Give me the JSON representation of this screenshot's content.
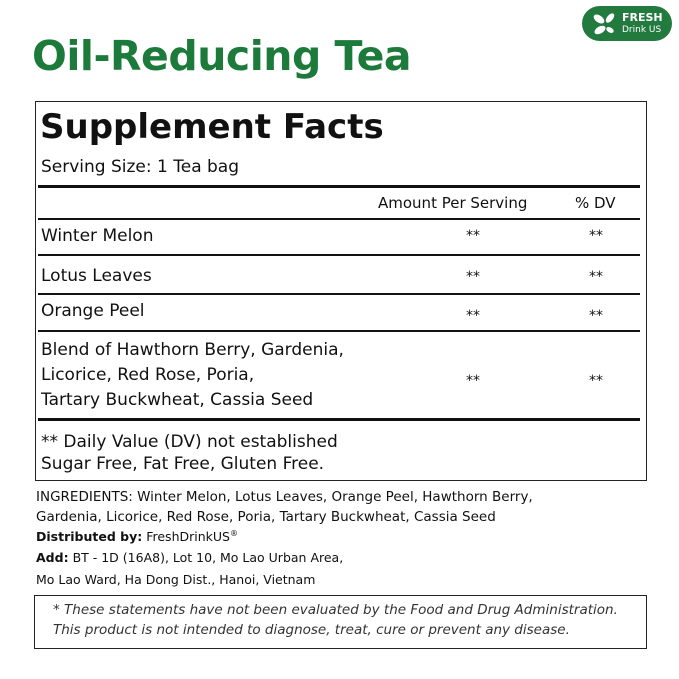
{
  "title": "Oil-Reducing Tea",
  "logo": {
    "line1": "FRESH",
    "line2": "Drink US",
    "icon": "leaf-icon",
    "color": "#237a3f"
  },
  "facts": {
    "heading": "Supplement Facts",
    "serving_size": "Serving Size: 1 Tea bag",
    "col_amount": "Amount Per Serving",
    "col_dv": "% DV",
    "rows": [
      {
        "name": "Winter Melon",
        "amount": "**",
        "dv": "**"
      },
      {
        "name": "Lotus Leaves",
        "amount": "**",
        "dv": "**"
      },
      {
        "name": "Orange Peel",
        "amount": "**",
        "dv": "**"
      },
      {
        "name_lines": [
          "Blend of Hawthorn Berry, Gardenia,",
          "Licorice, Red Rose, Poria,",
          "Tartary Buckwheat, Cassia Seed"
        ],
        "amount": "**",
        "dv": "**"
      }
    ],
    "footnote1": "** Daily Value (DV) not established",
    "footnote2": "Sugar Free, Fat Free, Gluten Free."
  },
  "ingredients": {
    "line1": "INGREDIENTS: Winter Melon, Lotus Leaves, Orange Peel, Hawthorn Berry,",
    "line2": "Gardenia, Licorice, Red Rose, Poria, Tartary Buckwheat, Cassia Seed"
  },
  "distributor": {
    "label": "Distributed by:",
    "value": "FreshDrinkUS",
    "mark": "®"
  },
  "address": {
    "label": "Add:",
    "line1": "BT - 1D (16A8), Lot 10, Mo Lao Urban Area,",
    "line2": "Mo Lao Ward, Ha Dong Dist., Hanoi, Vietnam"
  },
  "disclaimer": {
    "line1": "* These statements have not been evaluated by the Food and Drug Administration.",
    "line2": "This product is not intended to diagnose, treat, cure or prevent any disease."
  },
  "colors": {
    "brand_green": "#1c7b3a"
  }
}
